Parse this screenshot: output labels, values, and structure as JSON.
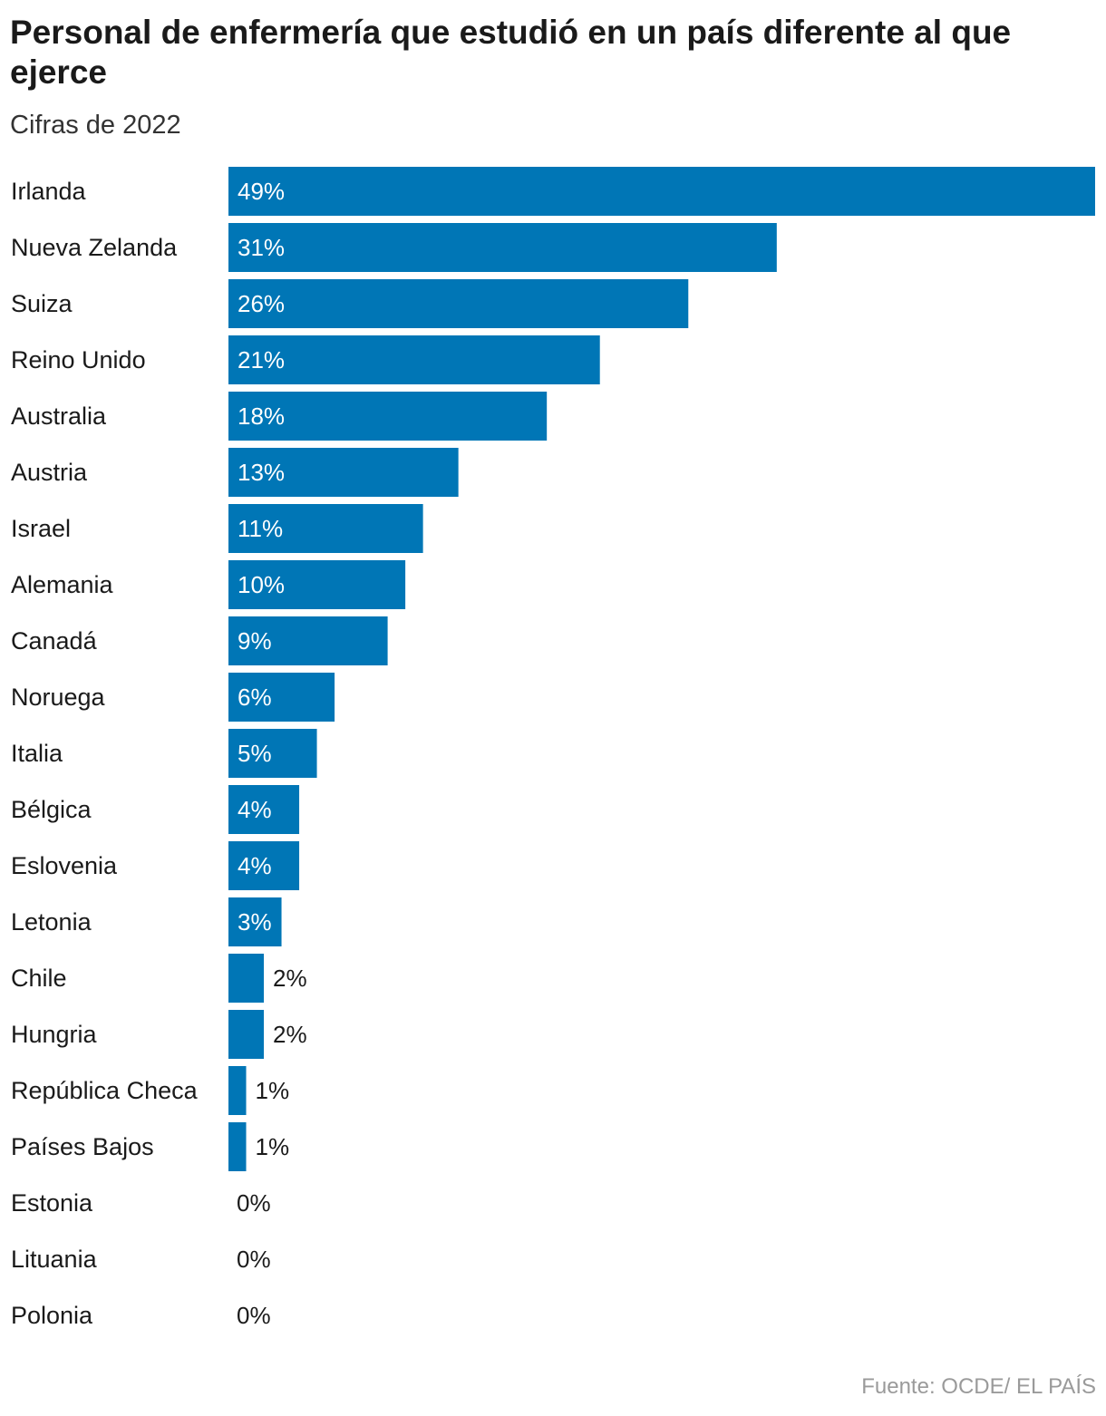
{
  "title": "Personal de enfermería que estudió en un país diferente al que ejerce",
  "subtitle": "Cifras de 2022",
  "source": "Fuente: OCDE/ EL PAÍS",
  "colors": {
    "bar": "#0076b6",
    "label_inside": "#ffffff",
    "label_outside": "#1a1a1a",
    "category_text": "#1a1a1a"
  },
  "chart_data": {
    "type": "bar",
    "orientation": "horizontal",
    "categories": [
      "Irlanda",
      "Nueva Zelanda",
      "Suiza",
      "Reino Unido",
      "Australia",
      "Austria",
      "Israel",
      "Alemania",
      "Canadá",
      "Noruega",
      "Italia",
      "Bélgica",
      "Eslovenia",
      "Letonia",
      "Chile",
      "Hungria",
      "República Checa",
      "Países Bajos",
      "Estonia",
      "Lituania",
      "Polonia"
    ],
    "values": [
      49,
      31,
      26,
      21,
      18,
      13,
      11,
      10,
      9,
      6,
      5,
      4,
      4,
      3,
      2,
      2,
      1,
      1,
      0,
      0,
      0
    ],
    "value_labels": [
      "49%",
      "31%",
      "26%",
      "21%",
      "18%",
      "13%",
      "11%",
      "10%",
      "9%",
      "6%",
      "5%",
      "4%",
      "4%",
      "3%",
      "2%",
      "2%",
      "1%",
      "1%",
      "0%",
      "0%",
      "0%"
    ],
    "unit": "%",
    "xlim": [
      0,
      49
    ],
    "grid": false,
    "legend": false,
    "xlabel": "",
    "ylabel": ""
  }
}
